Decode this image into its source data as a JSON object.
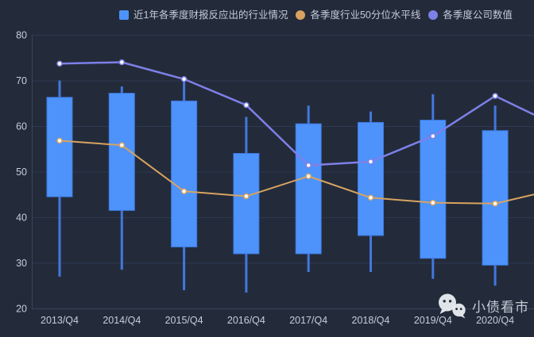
{
  "legend": {
    "items": [
      {
        "label": "近1年各季度财报反应出的行业情况",
        "marker": "square",
        "color": "#4d93fb"
      },
      {
        "label": "各季度行业50分位水平线",
        "marker": "circle",
        "color": "#d7a360"
      },
      {
        "label": "各季度公司数值",
        "marker": "circle",
        "color": "#7d80e8"
      }
    ]
  },
  "watermark": {
    "text": "小债看市",
    "icon": "wechat-icon"
  },
  "colors": {
    "background": "#232b3a",
    "grid_line": "#2e3950",
    "axis_line": "#39445c",
    "axis_label": "#c6cdd9",
    "candle_fill": "#4d93fb",
    "candle_border": "#3e79e0",
    "whisker": "#4377dd",
    "line_50pct": "#d7a360",
    "line_company": "#7d80e8",
    "marker_fill": "#ffffff"
  },
  "chart_data": {
    "type": "candlestick",
    "title": "",
    "xlabel": "",
    "ylabel": "",
    "grid": true,
    "legend_position": "top",
    "ylim": [
      20,
      80
    ],
    "yticks": [
      20,
      30,
      40,
      50,
      60,
      70,
      80
    ],
    "categories": [
      "2013/Q4",
      "2014/Q4",
      "2015/Q4",
      "2016/Q4",
      "2017/Q4",
      "2018/Q4",
      "2019/Q4",
      "2020/Q4"
    ],
    "series": [
      {
        "name": "近1年各季度财报反应出的行业情况",
        "type": "candlestick",
        "value_format": "[low, boxBottom, boxTop, high]",
        "data": [
          [
            27,
            44.5,
            66.3,
            70
          ],
          [
            28.5,
            41.5,
            67.2,
            68.7
          ],
          [
            24,
            33.5,
            65.5,
            70
          ],
          [
            23.5,
            32,
            54,
            62
          ],
          [
            28,
            32,
            60.5,
            64.5
          ],
          [
            28,
            36,
            60.8,
            63.2
          ],
          [
            26.5,
            31,
            61.3,
            67
          ],
          [
            25,
            29.5,
            59,
            64.5
          ]
        ]
      },
      {
        "name": "各季度行业50分位水平线",
        "type": "line",
        "values": [
          56.8,
          55.8,
          45.7,
          44.6,
          49,
          44.3,
          43.2,
          43
        ],
        "right_edge_value": 45
      },
      {
        "name": "各季度公司数值",
        "type": "line",
        "values": [
          73.7,
          74,
          70.3,
          64.6,
          51.4,
          52.2,
          57.8,
          66.6
        ],
        "right_edge_value": 62.5
      }
    ]
  }
}
